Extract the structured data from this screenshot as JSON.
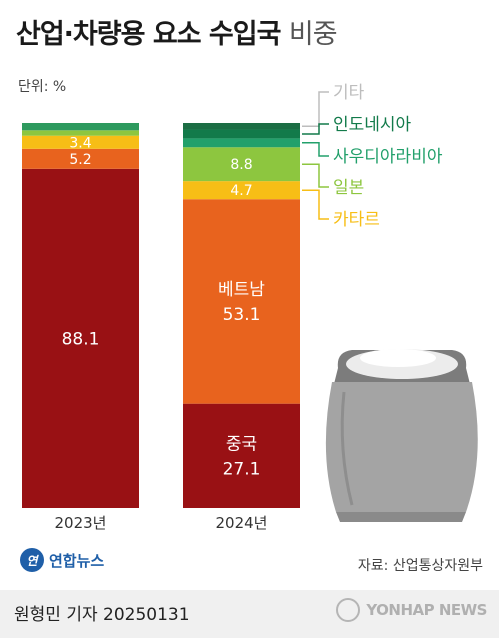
{
  "title": {
    "main": "산업·차량용 요소 수입국",
    "sub": "비중"
  },
  "unit": "단위: %",
  "footer": {
    "reporter": "원형민 기자  20250131",
    "source": "자료: 산업통상자원부",
    "logo": "연합뉴스",
    "logo_mark": "연",
    "watermark": "YONHAP NEWS"
  },
  "chart_data": {
    "type": "bar",
    "stacked": true,
    "categories": [
      "2023년",
      "2024년"
    ],
    "series": [
      {
        "name": "",
        "color": "#991114",
        "values": [
          88.1,
          null
        ],
        "labels": [
          "88.1",
          ""
        ]
      },
      {
        "name": "",
        "color": "#e8631e",
        "values": [
          5.2,
          null
        ],
        "labels": [
          "5.2",
          ""
        ]
      },
      {
        "name": "",
        "color": "#f7be16",
        "values": [
          3.4,
          null
        ],
        "labels": [
          "3.4",
          ""
        ]
      },
      {
        "name": "",
        "color": "#8dc63f",
        "values": [
          1.4,
          null
        ],
        "labels": [
          "",
          "1.4"
        ]
      },
      {
        "name": "",
        "color": "#2e9a5e",
        "values": [
          1.9,
          null
        ],
        "labels": [
          "",
          ""
        ]
      },
      {
        "name": "중국",
        "color": "#991114",
        "values": [
          null,
          27.1
        ],
        "labels": [
          "",
          "중국\n27.1"
        ]
      },
      {
        "name": "베트남",
        "color": "#e8631e",
        "values": [
          null,
          53.1
        ],
        "labels": [
          "",
          "베트남\n53.1"
        ]
      },
      {
        "name": "카타르",
        "color": "#f7be16",
        "values": [
          null,
          4.7
        ],
        "labels": [
          "",
          "4.7"
        ]
      },
      {
        "name": "일본",
        "color": "#8dc63f",
        "values": [
          null,
          8.8
        ],
        "labels": [
          "",
          "8.8"
        ]
      },
      {
        "name": "사우디아라비아",
        "color": "#22a06b",
        "values": [
          null,
          2.3
        ],
        "labels": [
          "",
          ""
        ]
      },
      {
        "name": "인도네시아",
        "color": "#127a4a",
        "values": [
          null,
          2.3
        ],
        "labels": [
          "",
          ""
        ]
      },
      {
        "name": "기타",
        "color": "#1c6e44",
        "values": [
          null,
          1.7
        ],
        "labels": [
          "",
          ""
        ]
      }
    ],
    "legend_colors": {
      "기타": "#bdbdbd",
      "인도네시아": "#127a4a",
      "사우디아라비아": "#22a06b",
      "일본": "#8dc63f",
      "카타르": "#f7be16"
    },
    "ylim": [
      0,
      100
    ],
    "grid": false
  }
}
